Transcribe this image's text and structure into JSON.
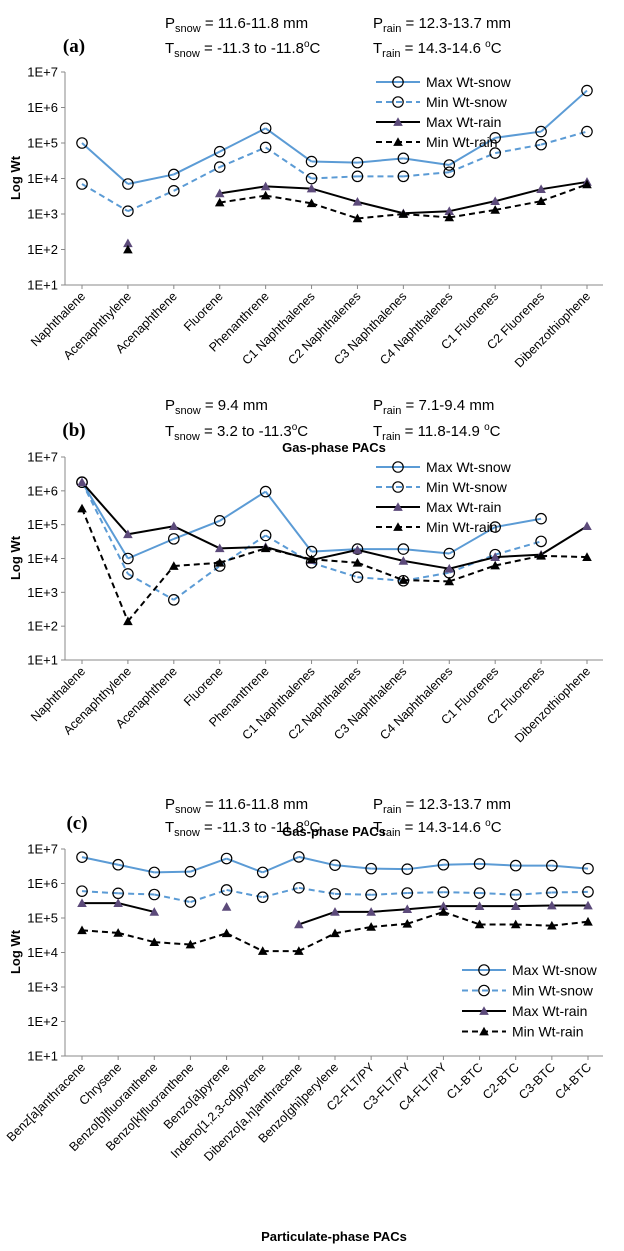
{
  "chart_data": [
    {
      "type": "line",
      "panel_label": "(a)",
      "conditions": {
        "p_snow": "= 11.6-11.8 mm",
        "p_rain": "= 12.3-13.7 mm",
        "t_snow": "= -11.3 to -11.8",
        "t_rain": "= 14.3-14.6 "
      },
      "xlabel": "Gas-phase PACs",
      "ylabel": "Log Wt",
      "y_scale": "log",
      "ylim": [
        10,
        10000000
      ],
      "y_ticks": [
        "1E+1",
        "1E+2",
        "1E+3",
        "1E+4",
        "1E+5",
        "1E+6",
        "1E+7"
      ],
      "legend_position": "top-right",
      "categories": [
        "Naphthalene",
        "Acenaphthylene",
        "Acenaphthene",
        "Fluorene",
        "Phenanthrene",
        "C1 Naphthalenes",
        "C2 Naphthalenes",
        "C3 Naphthalenes",
        "C4 Naphthalenes",
        "C1 Fluorenes",
        "C2 Fluorenes",
        "Dibenzothiophene"
      ],
      "series": [
        {
          "name": "Max Wt-snow",
          "values": [
            100000,
            7000,
            13000,
            57000,
            260000,
            30000,
            28000,
            37000,
            24000,
            140000,
            210000,
            3000000
          ]
        },
        {
          "name": "Min Wt-snow",
          "values": [
            7000,
            1200,
            4500,
            21000,
            75000,
            10000,
            11500,
            11500,
            15000,
            52000,
            90000,
            210000
          ]
        },
        {
          "name": "Max Wt-rain",
          "values": [
            null,
            150,
            null,
            3800,
            6000,
            5200,
            2200,
            1050,
            1200,
            2300,
            5000,
            8000
          ]
        },
        {
          "name": "Min Wt-rain",
          "values": [
            null,
            100,
            null,
            2100,
            3300,
            2000,
            750,
            1000,
            800,
            1300,
            2300,
            6800
          ]
        }
      ]
    },
    {
      "type": "line",
      "panel_label": "(b)",
      "conditions": {
        "p_snow": "= 9.4 mm",
        "p_rain": "= 7.1-9.4 mm",
        "t_snow": "= 3.2 to -11.3",
        "t_rain": "= 11.8-14.9 "
      },
      "xlabel": "Gas-phase PACs",
      "ylabel": "Log Wt",
      "y_scale": "log",
      "ylim": [
        10,
        10000000
      ],
      "y_ticks": [
        "1E+1",
        "1E+2",
        "1E+3",
        "1E+4",
        "1E+5",
        "1E+6",
        "1E+7"
      ],
      "legend_position": "top-right",
      "categories": [
        "Naphthalene",
        "Acenaphthylene",
        "Acenaphthene",
        "Fluorene",
        "Phenanthrene",
        "C1 Naphthalenes",
        "C2 Naphthalenes",
        "C3 Naphthalenes",
        "C4 Naphthalenes",
        "C1 Fluorenes",
        "C2 Fluorenes",
        "Dibenzothiophene"
      ],
      "series": [
        {
          "name": "Max Wt-snow",
          "values": [
            1800000,
            10000,
            38000,
            130000,
            950000,
            16000,
            19000,
            19000,
            14000,
            85000,
            150000,
            null
          ]
        },
        {
          "name": "Min Wt-snow",
          "values": [
            1800000,
            3500,
            600,
            6000,
            48000,
            7500,
            2800,
            2200,
            3800,
            13000,
            32000,
            null
          ]
        },
        {
          "name": "Max Wt-rain",
          "values": [
            1800000,
            52000,
            90000,
            20000,
            22000,
            9000,
            18000,
            8500,
            5000,
            11000,
            13000,
            90000
          ]
        },
        {
          "name": "Min Wt-rain",
          "values": [
            300000,
            140,
            6000,
            7500,
            20000,
            9500,
            7500,
            2300,
            2100,
            6200,
            12000,
            11000
          ]
        }
      ]
    },
    {
      "type": "line",
      "panel_label": "(c)",
      "conditions": {
        "p_snow": "= 11.6-11.8 mm",
        "p_rain": "= 12.3-13.7 mm",
        "t_snow": "= -11.3 to -11.8",
        "t_rain": "= 14.3-14.6 "
      },
      "xlabel": "Particulate-phase PACs",
      "ylabel": "Log Wt",
      "y_scale": "log",
      "ylim": [
        10,
        10000000
      ],
      "y_ticks": [
        "1E+1",
        "1E+2",
        "1E+3",
        "1E+4",
        "1E+5",
        "1E+6",
        "1E+7"
      ],
      "legend_position": "bottom-right",
      "categories": [
        "Benz[a]anthracene",
        "Chrysene",
        "Benzo[b]fluoranthene",
        "Benzo[k]fluoranthene",
        "Benzo[a]pyrene",
        "Indeno[1,2,3-cd]pyrene",
        "Dibenzo[a,h]anthracene",
        "Benzo[ghi]perylene",
        "C2-FLT/PY",
        "C3-FLT/PY",
        "C4-FLT/PY",
        "C1-BTC",
        "C2-BTC",
        "C3-BTC",
        "C4-BTC"
      ],
      "series": [
        {
          "name": "Max Wt-snow",
          "values": [
            5800000,
            3500000,
            2100000,
            2200000,
            5300000,
            2100000,
            5900000,
            3400000,
            2700000,
            2600000,
            3500000,
            3700000,
            3300000,
            3300000,
            2700000
          ]
        },
        {
          "name": "Min Wt-snow",
          "values": [
            600000,
            520000,
            480000,
            290000,
            650000,
            400000,
            750000,
            500000,
            470000,
            530000,
            560000,
            530000,
            470000,
            550000,
            570000
          ]
        },
        {
          "name": "Max Wt-rain",
          "values": [
            270000,
            270000,
            150000,
            null,
            210000,
            null,
            65000,
            150000,
            150000,
            180000,
            220000,
            220000,
            220000,
            230000,
            230000
          ]
        },
        {
          "name": "Min Wt-rain",
          "values": [
            44000,
            37000,
            20000,
            17000,
            36000,
            11000,
            11000,
            36000,
            55000,
            68000,
            150000,
            65000,
            65000,
            60000,
            78000
          ]
        }
      ]
    }
  ]
}
